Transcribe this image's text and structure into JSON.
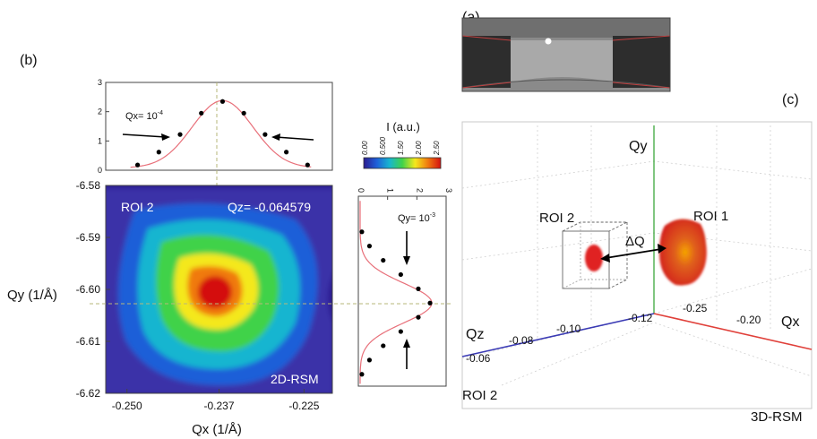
{
  "panel_labels": {
    "a": "(a)",
    "b": "(b)",
    "c": "(c)"
  },
  "colors": {
    "fit_line": "#e8707a",
    "guide": "#b7b77a",
    "qy_axis": "#2ca02c",
    "qz_axis": "#3b3bb5",
    "qx_axis": "#e0403a",
    "roi_blob": "#e02020"
  },
  "colorbar": {
    "title": "I (a.u.)",
    "ticks": [
      "0.00",
      "0.500",
      "1.50",
      "2.00",
      "2.50"
    ],
    "colors": [
      "#2b1b8f",
      "#1f5fd8",
      "#18b5d0",
      "#3fd24a",
      "#f4e81c",
      "#f07a10",
      "#d41010"
    ]
  },
  "chart_data": [
    {
      "type": "scatter",
      "name": "top-profile",
      "annotation": "Qx= 10",
      "annotation_sup": "-4",
      "ylim": [
        0,
        3
      ],
      "yticks": [
        "0",
        "1",
        "2",
        "3"
      ],
      "x": [
        -0.2485,
        -0.2455,
        -0.2425,
        -0.2395,
        -0.2365,
        -0.2335,
        -0.2305,
        -0.2275,
        -0.2245
      ],
      "y": [
        0.18,
        0.62,
        1.22,
        1.95,
        2.35,
        1.95,
        1.22,
        0.62,
        0.18
      ],
      "fit": "gaussian"
    },
    {
      "type": "heatmap",
      "name": "2D-RSM",
      "roi_label": "ROI 2",
      "qz_label": "Qz= -0.064579",
      "corner_label": "2D-RSM",
      "xlabel": "Qx (1/Å)",
      "ylabel": "Qy (1/Å)",
      "xlim": [
        -0.253,
        -0.221
      ],
      "ylim": [
        -6.62,
        -6.58
      ],
      "xticks": [
        "-0.250",
        "-0.237",
        "-0.225"
      ],
      "yticks": [
        "-6.58",
        "-6.59",
        "-6.60",
        "-6.61",
        "-6.62"
      ],
      "peak": {
        "qx": -0.237,
        "qy": -6.601,
        "intensity": 2.5
      }
    },
    {
      "type": "scatter",
      "name": "side-profile",
      "annotation": "Qy= 10",
      "annotation_sup": "-3",
      "xlim": [
        0,
        3
      ],
      "xticks": [
        "0",
        "1",
        "2",
        "3"
      ],
      "y": [
        -6.6175,
        -6.6145,
        -6.6115,
        -6.6085,
        -6.6055,
        -6.6025,
        -6.5995,
        -6.5965,
        -6.5935,
        -6.5905,
        -6.5875
      ],
      "x": [
        0.12,
        0.38,
        0.85,
        1.45,
        2.05,
        2.45,
        2.05,
        1.45,
        0.85,
        0.38,
        0.12
      ],
      "fit": "gaussian"
    },
    {
      "type": "scatter",
      "name": "3D-RSM",
      "axis_labels": {
        "qy": "Qy",
        "qz": "Qz",
        "qx": "Qx"
      },
      "qz_ticks": [
        "-0.06",
        "-0.08",
        "-0.10",
        "-0.12"
      ],
      "qx_ticks": [
        "-0.25",
        "-0.20"
      ],
      "roi_labels": [
        "ROI 2",
        "ROI 1"
      ],
      "delta_label": "ΔQ",
      "bottom_left_label": "ROI 2",
      "corner_label": "3D-RSM"
    }
  ]
}
